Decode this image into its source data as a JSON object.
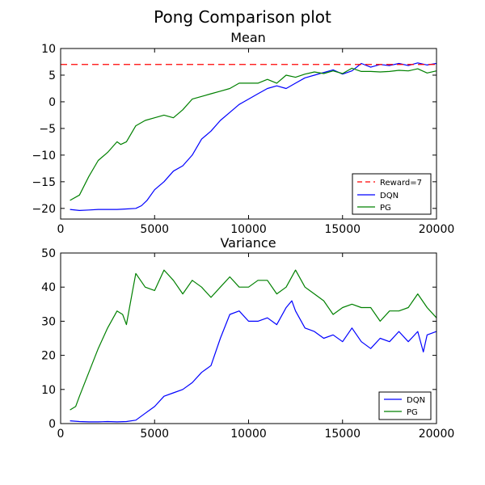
{
  "figure": {
    "title": "Pong Comparison plot"
  },
  "chart_data": [
    {
      "type": "line",
      "title": "Mean",
      "xlabel": "",
      "ylabel": "",
      "xlim": [
        0,
        20000
      ],
      "ylim": [
        -22,
        10
      ],
      "xticks": [
        0,
        5000,
        10000,
        15000,
        20000
      ],
      "xtick_labels": [
        "0",
        "5000",
        "10000",
        "15000",
        "20000"
      ],
      "yticks": [
        -20,
        -15,
        -10,
        -5,
        0,
        5,
        10
      ],
      "ytick_labels": [
        "−20",
        "−15",
        "−10",
        "−5",
        "0",
        "5",
        "10"
      ],
      "grid": false,
      "legend": "lower-right",
      "hline": {
        "name": "Reward=7",
        "y": 7,
        "color": "#ff0000",
        "style": "dashed"
      },
      "series": [
        {
          "name": "DQN",
          "color": "#0000ff",
          "x": [
            500,
            1000,
            1500,
            2000,
            2500,
            3000,
            3500,
            4000,
            4300,
            4600,
            5000,
            5500,
            6000,
            6500,
            7000,
            7500,
            8000,
            8500,
            9000,
            9500,
            10000,
            10500,
            11000,
            11500,
            12000,
            12500,
            13000,
            13500,
            14000,
            14500,
            15000,
            15500,
            16000,
            16500,
            17000,
            17500,
            18000,
            18500,
            19000,
            19500,
            20000
          ],
          "y": [
            -20.2,
            -20.4,
            -20.3,
            -20.2,
            -20.2,
            -20.2,
            -20.1,
            -20.0,
            -19.5,
            -18.5,
            -16.5,
            -15,
            -13,
            -12,
            -10,
            -7,
            -5.5,
            -3.5,
            -2,
            -0.5,
            0.5,
            1.5,
            2.5,
            3,
            2.5,
            3.5,
            4.5,
            5,
            5.5,
            6,
            5.2,
            5.8,
            7.2,
            6.5,
            7,
            6.8,
            7.2,
            6.8,
            7.3,
            6.9,
            7.2
          ]
        },
        {
          "name": "PG",
          "color": "#008000",
          "x": [
            500,
            1000,
            1500,
            2000,
            2500,
            3000,
            3200,
            3500,
            4000,
            4500,
            5000,
            5500,
            6000,
            6500,
            7000,
            7500,
            8000,
            8500,
            9000,
            9500,
            10000,
            10500,
            11000,
            11500,
            12000,
            12500,
            13000,
            13500,
            14000,
            14500,
            15000,
            15500,
            16000,
            16500,
            17000,
            17500,
            18000,
            18500,
            19000,
            19500,
            20000
          ],
          "y": [
            -18.5,
            -17.5,
            -14,
            -11,
            -9.5,
            -7.5,
            -8,
            -7.5,
            -4.5,
            -3.5,
            -3,
            -2.5,
            -3,
            -1.5,
            0.5,
            1,
            1.5,
            2,
            2.5,
            3.5,
            3.5,
            3.5,
            4.2,
            3.5,
            5,
            4.6,
            5.2,
            5.6,
            5.3,
            5.8,
            5.3,
            6.3,
            5.7,
            5.7,
            5.6,
            5.7,
            5.9,
            5.8,
            6.2,
            5.4,
            5.8
          ]
        }
      ]
    },
    {
      "type": "line",
      "title": "Variance",
      "xlabel": "",
      "ylabel": "",
      "xlim": [
        0,
        20000
      ],
      "ylim": [
        0,
        50
      ],
      "xticks": [
        0,
        5000,
        10000,
        15000,
        20000
      ],
      "xtick_labels": [
        "0",
        "5000",
        "10000",
        "15000",
        "20000"
      ],
      "yticks": [
        0,
        10,
        20,
        30,
        40,
        50
      ],
      "ytick_labels": [
        "0",
        "10",
        "20",
        "30",
        "40",
        "50"
      ],
      "grid": false,
      "legend": "lower-right",
      "series": [
        {
          "name": "DQN",
          "color": "#0000ff",
          "x": [
            500,
            1000,
            1500,
            2000,
            2500,
            3000,
            3500,
            4000,
            4500,
            5000,
            5500,
            6000,
            6500,
            7000,
            7500,
            8000,
            8500,
            9000,
            9500,
            10000,
            10500,
            11000,
            11500,
            12000,
            12300,
            12500,
            13000,
            13500,
            14000,
            14500,
            15000,
            15500,
            16000,
            16500,
            17000,
            17500,
            18000,
            18500,
            19000,
            19300,
            19500,
            20000
          ],
          "y": [
            0.8,
            0.6,
            0.5,
            0.5,
            0.6,
            0.5,
            0.6,
            1,
            3,
            5,
            8,
            9,
            10,
            12,
            15,
            17,
            25,
            32,
            33,
            30,
            30,
            31,
            29,
            34,
            36,
            33,
            28,
            27,
            25,
            26,
            24,
            28,
            24,
            22,
            25,
            24,
            27,
            24,
            27,
            21,
            26,
            27
          ]
        },
        {
          "name": "PG",
          "color": "#008000",
          "x": [
            500,
            800,
            1000,
            1500,
            2000,
            2500,
            3000,
            3300,
            3500,
            3800,
            4000,
            4500,
            5000,
            5500,
            6000,
            6500,
            7000,
            7500,
            8000,
            8500,
            9000,
            9500,
            10000,
            10500,
            11000,
            11500,
            12000,
            12500,
            13000,
            13500,
            14000,
            14500,
            15000,
            15500,
            16000,
            16500,
            17000,
            17500,
            18000,
            18500,
            19000,
            19500,
            20000
          ],
          "y": [
            4,
            5,
            8,
            15,
            22,
            28,
            33,
            32,
            29,
            38,
            44,
            40,
            39,
            45,
            42,
            38,
            42,
            40,
            37,
            40,
            43,
            40,
            40,
            42,
            42,
            38,
            40,
            45,
            40,
            38,
            36,
            32,
            34,
            35,
            34,
            34,
            30,
            33,
            33,
            34,
            38,
            34,
            31
          ]
        }
      ]
    }
  ]
}
